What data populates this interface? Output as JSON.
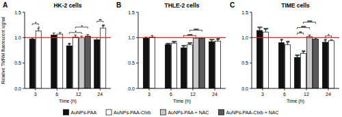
{
  "chart_data": [
    {
      "type": "bar",
      "panel_label": "A",
      "title": "HK-2 cells",
      "x_label": "Time (h)",
      "y_label": "Relative TMRM fluorescent signal",
      "categories": [
        "3",
        "6",
        "12",
        "24"
      ],
      "series": [
        {
          "name": "AuNPs-PAA",
          "color": "#111111",
          "values": [
            0.97,
            1.05,
            0.84,
            0.96
          ],
          "errors": [
            0.02,
            0.04,
            0.03,
            0.04
          ],
          "significance": [
            null,
            null,
            "**",
            null
          ]
        },
        {
          "name": "AuNPs-PAA-Ctxb",
          "color": "#ffffff",
          "values": [
            1.13,
            1.07,
            1.01,
            1.19
          ],
          "errors": [
            0.05,
            0.03,
            0.04,
            0.04
          ],
          "significance": [
            "*",
            null,
            null,
            "**"
          ]
        },
        {
          "name": "AuNPs-PAA + NAC",
          "color": "#c8c8c8",
          "values": [
            null,
            null,
            1.0,
            null
          ],
          "errors": [
            null,
            null,
            0.03,
            null
          ],
          "significance": [
            null,
            null,
            null,
            null
          ]
        },
        {
          "name": "AuNPs-PAA-Ctxb + NAC",
          "color": "#5a5a5a",
          "values": [
            null,
            null,
            1.03,
            null
          ],
          "errors": [
            null,
            null,
            0.03,
            null
          ],
          "significance": [
            null,
            null,
            null,
            null
          ]
        }
      ],
      "comparisons": [
        {
          "category": "3",
          "from": "AuNPs-PAA",
          "to": "AuNPs-PAA-Ctxb",
          "label": "*"
        },
        {
          "category": "12",
          "from": "AuNPs-PAA",
          "to": "AuNPs-PAA + NAC",
          "label": "*"
        },
        {
          "category": "12",
          "from": "AuNPs-PAA-Ctxb",
          "to": "AuNPs-PAA-Ctxb + NAC",
          "label": "*"
        },
        {
          "category": "24",
          "from": "AuNPs-PAA",
          "to": "AuNPs-PAA-Ctxb",
          "label": "**"
        }
      ],
      "hline": 1,
      "ylim": [
        0,
        1.5
      ],
      "yticks": [
        {
          "value": 0,
          "label": "0.0"
        },
        0.5,
        {
          "value": 1,
          "label": "1.0"
        },
        1.5
      ],
      "grid": false,
      "legend": "bottom"
    },
    {
      "type": "bar",
      "panel_label": "B",
      "title": "THLE-2 cells",
      "x_label": "Time (h)",
      "categories": [
        "3",
        "6",
        "12",
        "24"
      ],
      "series": [
        {
          "name": "AuNPs-PAA",
          "color": "#111111",
          "values": [
            1.0,
            0.86,
            0.8,
            0.92
          ],
          "errors": [
            0.01,
            0.01,
            0.02,
            0.02
          ],
          "significance": [
            null,
            "****",
            "****",
            "****"
          ]
        },
        {
          "name": "AuNPs-PAA-Ctxb",
          "color": "#ffffff",
          "values": [
            1.01,
            0.89,
            0.86,
            0.93
          ],
          "errors": [
            0.03,
            0.02,
            0.02,
            0.03
          ],
          "significance": [
            null,
            "****",
            "****",
            "***"
          ]
        },
        {
          "name": "AuNPs-PAA + NAC",
          "color": "#c8c8c8",
          "values": [
            null,
            null,
            0.99,
            null
          ],
          "errors": [
            null,
            null,
            0.01,
            null
          ],
          "significance": [
            null,
            null,
            null,
            null
          ]
        },
        {
          "name": "AuNPs-PAA-Ctxb + NAC",
          "color": "#5a5a5a",
          "values": [
            null,
            null,
            0.99,
            null
          ],
          "errors": [
            null,
            null,
            0.01,
            null
          ],
          "significance": [
            null,
            null,
            null,
            null
          ]
        }
      ],
      "comparisons": [
        {
          "category": "12",
          "from": "AuNPs-PAA",
          "to": "AuNPs-PAA + NAC",
          "label": "****"
        },
        {
          "category": "12",
          "from": "AuNPs-PAA-Ctxb",
          "to": "AuNPs-PAA-Ctxb + NAC",
          "label": "****"
        }
      ],
      "hline": 1,
      "ylim": [
        0,
        1.5
      ],
      "yticks": [
        {
          "value": 0,
          "label": "0.0"
        },
        0.5,
        {
          "value": 1,
          "label": "1.0"
        },
        1.5
      ],
      "grid": false
    },
    {
      "type": "bar",
      "panel_label": "C",
      "title": "TIME cells",
      "x_label": "Time (h)",
      "categories": [
        "3",
        "6",
        "12",
        "24"
      ],
      "series": [
        {
          "name": "AuNPs-PAA",
          "color": "#111111",
          "values": [
            1.14,
            0.9,
            0.61,
            0.91
          ],
          "errors": [
            0.04,
            0.05,
            0.03,
            0.03
          ],
          "significance": [
            "****",
            "**",
            "****",
            "**"
          ]
        },
        {
          "name": "AuNPs-PAA-Ctxb",
          "color": "#ffffff",
          "values": [
            1.11,
            0.86,
            0.69,
            0.94
          ],
          "errors": [
            0.05,
            0.04,
            0.03,
            0.02
          ],
          "significance": [
            "****",
            "***",
            "***",
            null
          ]
        },
        {
          "name": "AuNPs-PAA + NAC",
          "color": "#c8c8c8",
          "values": [
            null,
            null,
            1.02,
            null
          ],
          "errors": [
            null,
            null,
            0.03,
            null
          ],
          "significance": [
            null,
            null,
            null,
            null
          ]
        },
        {
          "name": "AuNPs-PAA-Ctxb + NAC",
          "color": "#5a5a5a",
          "values": [
            null,
            null,
            0.97,
            null
          ],
          "errors": [
            null,
            null,
            0.02,
            null
          ],
          "significance": [
            null,
            null,
            null,
            null
          ]
        }
      ],
      "comparisons": [
        {
          "category": "12",
          "from": "AuNPs-PAA",
          "to": "AuNPs-PAA-Ctxb",
          "label": "**"
        },
        {
          "category": "12",
          "from": "AuNPs-PAA",
          "to": "AuNPs-PAA + NAC",
          "label": "****"
        },
        {
          "category": "12",
          "from": "AuNPs-PAA-Ctxb",
          "to": "AuNPs-PAA-Ctxb + NAC",
          "label": "****"
        },
        {
          "category": "24",
          "from": "AuNPs-PAA",
          "to": "AuNPs-PAA-Ctxb",
          "label": "*"
        }
      ],
      "hline": 1,
      "ylim": [
        0,
        1.5
      ],
      "yticks": [
        {
          "value": 0,
          "label": "0.0"
        },
        0.5,
        {
          "value": 1,
          "label": "1.0"
        },
        1.5
      ],
      "grid": false
    }
  ]
}
